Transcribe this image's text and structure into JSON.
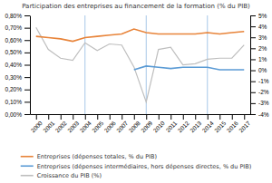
{
  "chart_data": {
    "type": "line",
    "title": "Participation des entreprises au financement de la formation (% du PIB)",
    "x": [
      2000,
      2001,
      2002,
      2003,
      2004,
      2005,
      2006,
      2007,
      2008,
      2009,
      2010,
      2011,
      2012,
      2013,
      2014,
      2015,
      2016,
      2017
    ],
    "xlim": [
      1999.5,
      2017.5
    ],
    "xticks": [
      2000,
      2001,
      2002,
      2003,
      2004,
      2005,
      2006,
      2007,
      2008,
      2009,
      2010,
      2011,
      2012,
      2013,
      2014,
      2015,
      2016,
      2017
    ],
    "ylim": [
      0.0,
      0.008
    ],
    "yticks": [
      {
        "value": 0.0,
        "label": "0,00%"
      },
      {
        "value": 0.001,
        "label": "0,10%"
      },
      {
        "value": 0.002,
        "label": "0,20%"
      },
      {
        "value": 0.003,
        "label": "0,30%"
      },
      {
        "value": 0.004,
        "label": "0,40%"
      },
      {
        "value": 0.005,
        "label": "0,50%"
      },
      {
        "value": 0.006,
        "label": "0,60%"
      },
      {
        "value": 0.007,
        "label": "0,70%"
      },
      {
        "value": 0.008,
        "label": "0,80%"
      }
    ],
    "y2lim": [
      -4.0,
      5.0
    ],
    "y2ticks": [
      {
        "value": -4,
        "label": "-4%"
      },
      {
        "value": -3,
        "label": "-3%"
      },
      {
        "value": -2,
        "label": "-2%"
      },
      {
        "value": -1,
        "label": "-1%"
      },
      {
        "value": 0,
        "label": "0%"
      },
      {
        "value": 1,
        "label": "1%"
      },
      {
        "value": 2,
        "label": "2%"
      },
      {
        "value": 3,
        "label": "3%"
      },
      {
        "value": 4,
        "label": "4%"
      },
      {
        "value": 5,
        "label": "5%"
      }
    ],
    "vlines": {
      "values": [
        2004,
        2009,
        2014
      ],
      "color": "#A8C8E8"
    },
    "series": [
      {
        "name": "Entreprises (dépenses totales, % du PIB)",
        "color": "#E8843A",
        "values": [
          0.0063,
          0.0062,
          0.0061,
          0.0059,
          0.0062,
          0.0063,
          0.0064,
          0.0065,
          0.0069,
          0.0066,
          0.0065,
          0.0065,
          0.0065,
          0.0065,
          0.0066,
          0.0065,
          0.0066,
          0.0067
        ]
      },
      {
        "name": "Entreprises (dépenses intermédiaires, hors dépenses directes, % du PIB)",
        "color": "#5B9BD5",
        "values": [
          null,
          null,
          null,
          null,
          null,
          null,
          null,
          null,
          0.0036,
          0.0039,
          0.0038,
          0.0037,
          0.0038,
          0.0038,
          0.0038,
          0.0036,
          0.0036,
          0.0036
        ]
      },
      {
        "name": "Croissance du PIB (%)",
        "color": "#BEBEBE",
        "axis": "y2",
        "values": [
          3.9,
          1.9,
          1.1,
          0.9,
          2.5,
          1.8,
          2.4,
          2.3,
          0.3,
          -2.9,
          1.9,
          2.1,
          0.5,
          0.6,
          1.0,
          1.1,
          1.1,
          2.3
        ]
      }
    ],
    "grid": false,
    "legend": "bottom"
  }
}
